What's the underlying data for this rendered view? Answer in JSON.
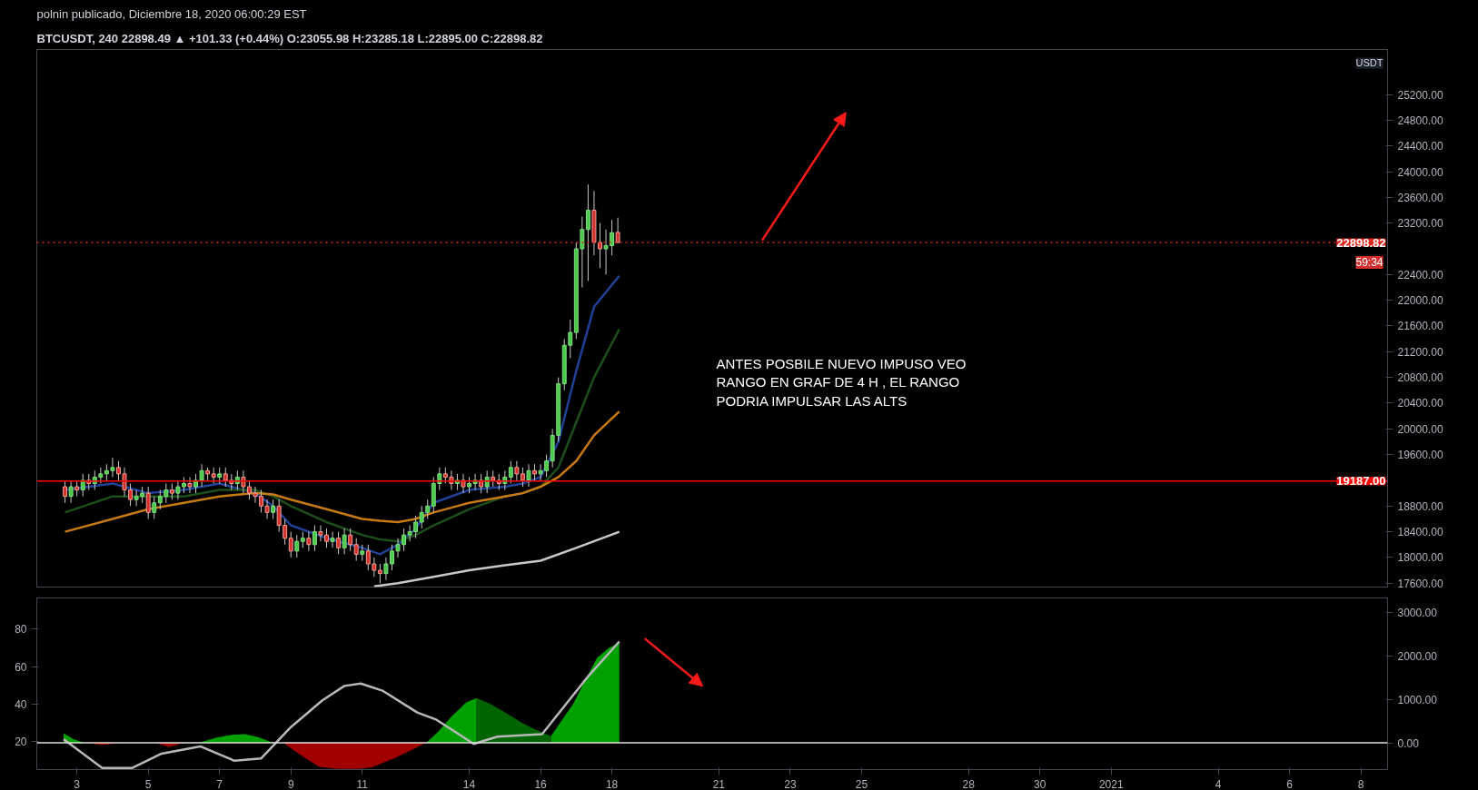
{
  "chart_data": [
    {
      "type": "candlestick",
      "title": "polnin publicado, Diciembre 18, 2020 06:00:29 EST",
      "subtitle": "BTCUSDT, 240  22898.49 ▲ +101.33 (+0.44%) O:23055.98 H:23285.18 L:22895.00 C:22898.82",
      "x": [
        "2020-12-02T16:00",
        "2020-12-02T20:00",
        "2020-12-03T00:00",
        "2020-12-03T04:00",
        "2020-12-03T08:00",
        "2020-12-03T12:00",
        "2020-12-03T16:00",
        "2020-12-03T20:00",
        "2020-12-04T00:00",
        "2020-12-04T04:00",
        "2020-12-04T08:00",
        "2020-12-04T12:00",
        "2020-12-04T16:00",
        "2020-12-04T20:00",
        "2020-12-05T00:00",
        "2020-12-05T04:00",
        "2020-12-05T08:00",
        "2020-12-05T12:00",
        "2020-12-05T16:00",
        "2020-12-05T20:00",
        "2020-12-06T00:00",
        "2020-12-06T04:00",
        "2020-12-06T08:00",
        "2020-12-06T12:00",
        "2020-12-06T16:00",
        "2020-12-06T20:00",
        "2020-12-07T00:00",
        "2020-12-07T04:00",
        "2020-12-07T08:00",
        "2020-12-07T12:00",
        "2020-12-07T16:00",
        "2020-12-07T20:00",
        "2020-12-08T00:00",
        "2020-12-08T04:00",
        "2020-12-08T08:00",
        "2020-12-08T12:00",
        "2020-12-08T16:00",
        "2020-12-08T20:00",
        "2020-12-09T00:00",
        "2020-12-09T04:00",
        "2020-12-09T08:00",
        "2020-12-09T12:00",
        "2020-12-09T16:00",
        "2020-12-09T20:00",
        "2020-12-10T00:00",
        "2020-12-10T04:00",
        "2020-12-10T08:00",
        "2020-12-10T12:00",
        "2020-12-10T16:00",
        "2020-12-10T20:00",
        "2020-12-11T00:00",
        "2020-12-11T04:00",
        "2020-12-11T08:00",
        "2020-12-11T12:00",
        "2020-12-11T16:00",
        "2020-12-11T20:00",
        "2020-12-12T00:00",
        "2020-12-12T04:00",
        "2020-12-12T08:00",
        "2020-12-12T12:00",
        "2020-12-12T16:00",
        "2020-12-12T20:00",
        "2020-12-13T00:00",
        "2020-12-13T04:00",
        "2020-12-13T08:00",
        "2020-12-13T12:00",
        "2020-12-13T16:00",
        "2020-12-13T20:00",
        "2020-12-14T00:00",
        "2020-12-14T04:00",
        "2020-12-14T08:00",
        "2020-12-14T12:00",
        "2020-12-14T16:00",
        "2020-12-14T20:00",
        "2020-12-15T00:00",
        "2020-12-15T04:00",
        "2020-12-15T08:00",
        "2020-12-15T12:00",
        "2020-12-15T16:00",
        "2020-12-15T20:00",
        "2020-12-16T00:00",
        "2020-12-16T04:00",
        "2020-12-16T08:00",
        "2020-12-16T12:00",
        "2020-12-16T16:00",
        "2020-12-16T20:00",
        "2020-12-17T00:00",
        "2020-12-17T04:00",
        "2020-12-17T08:00",
        "2020-12-17T12:00",
        "2020-12-17T16:00",
        "2020-12-17T20:00",
        "2020-12-18T00:00",
        "2020-12-18T04:00"
      ],
      "ohlc": [
        [
          19100,
          19200,
          18850,
          18950
        ],
        [
          18950,
          19200,
          18850,
          19100
        ],
        [
          19100,
          19200,
          18950,
          19050
        ],
        [
          19050,
          19300,
          18950,
          19200
        ],
        [
          19200,
          19300,
          19050,
          19150
        ],
        [
          19150,
          19350,
          19050,
          19250
        ],
        [
          19250,
          19400,
          19150,
          19300
        ],
        [
          19300,
          19450,
          19200,
          19350
        ],
        [
          19350,
          19550,
          19250,
          19400
        ],
        [
          19400,
          19500,
          19200,
          19300
        ],
        [
          19300,
          19400,
          18950,
          19050
        ],
        [
          19050,
          19150,
          18800,
          18900
        ],
        [
          18900,
          19050,
          18800,
          18950
        ],
        [
          18950,
          19100,
          18850,
          19000
        ],
        [
          19000,
          19100,
          18600,
          18700
        ],
        [
          18700,
          18950,
          18600,
          18850
        ],
        [
          18850,
          19050,
          18750,
          18950
        ],
        [
          18950,
          19150,
          18850,
          19050
        ],
        [
          19050,
          19150,
          18900,
          19000
        ],
        [
          19000,
          19200,
          18900,
          19100
        ],
        [
          19100,
          19250,
          19000,
          19150
        ],
        [
          19150,
          19250,
          19000,
          19100
        ],
        [
          19100,
          19300,
          19000,
          19200
        ],
        [
          19200,
          19450,
          19100,
          19350
        ],
        [
          19350,
          19400,
          19200,
          19300
        ],
        [
          19300,
          19400,
          19150,
          19250
        ],
        [
          19250,
          19400,
          19150,
          19300
        ],
        [
          19300,
          19400,
          19100,
          19200
        ],
        [
          19200,
          19300,
          19050,
          19150
        ],
        [
          19150,
          19350,
          19050,
          19250
        ],
        [
          19250,
          19350,
          19000,
          19100
        ],
        [
          19100,
          19200,
          18900,
          19000
        ],
        [
          19000,
          19100,
          18850,
          18950
        ],
        [
          18950,
          19050,
          18700,
          18800
        ],
        [
          18800,
          18900,
          18600,
          18700
        ],
        [
          18700,
          18900,
          18600,
          18800
        ],
        [
          18800,
          18900,
          18400,
          18500
        ],
        [
          18500,
          18600,
          18200,
          18300
        ],
        [
          18300,
          18400,
          18000,
          18100
        ],
        [
          18100,
          18350,
          18000,
          18250
        ],
        [
          18250,
          18400,
          18150,
          18300
        ],
        [
          18300,
          18400,
          18100,
          18200
        ],
        [
          18200,
          18500,
          18100,
          18400
        ],
        [
          18400,
          18500,
          18250,
          18350
        ],
        [
          18350,
          18450,
          18150,
          18250
        ],
        [
          18250,
          18400,
          18150,
          18300
        ],
        [
          18300,
          18400,
          18050,
          18150
        ],
        [
          18150,
          18450,
          18050,
          18350
        ],
        [
          18350,
          18450,
          18100,
          18200
        ],
        [
          18200,
          18300,
          17950,
          18050
        ],
        [
          18050,
          18200,
          17950,
          18100
        ],
        [
          18100,
          18200,
          17800,
          17900
        ],
        [
          17900,
          18000,
          17700,
          17800
        ],
        [
          17800,
          17900,
          17600,
          17750
        ],
        [
          17750,
          18000,
          17650,
          17900
        ],
        [
          17900,
          18200,
          17800,
          18100
        ],
        [
          18100,
          18300,
          18000,
          18200
        ],
        [
          18200,
          18450,
          18100,
          18350
        ],
        [
          18350,
          18500,
          18250,
          18400
        ],
        [
          18400,
          18650,
          18300,
          18550
        ],
        [
          18550,
          18800,
          18450,
          18700
        ],
        [
          18700,
          18900,
          18600,
          18800
        ],
        [
          18800,
          19250,
          18700,
          19150
        ],
        [
          19150,
          19400,
          19050,
          19300
        ],
        [
          19300,
          19400,
          19150,
          19250
        ],
        [
          19250,
          19350,
          19050,
          19150
        ],
        [
          19150,
          19300,
          19050,
          19200
        ],
        [
          19200,
          19300,
          19000,
          19100
        ],
        [
          19100,
          19250,
          19000,
          19150
        ],
        [
          19150,
          19300,
          19050,
          19200
        ],
        [
          19200,
          19300,
          19000,
          19100
        ],
        [
          19100,
          19350,
          19000,
          19250
        ],
        [
          19250,
          19350,
          19100,
          19200
        ],
        [
          19200,
          19300,
          19050,
          19150
        ],
        [
          19150,
          19350,
          19050,
          19250
        ],
        [
          19250,
          19500,
          19150,
          19400
        ],
        [
          19400,
          19500,
          19200,
          19300
        ],
        [
          19300,
          19400,
          19100,
          19200
        ],
        [
          19200,
          19450,
          19100,
          19350
        ],
        [
          19350,
          19450,
          19200,
          19300
        ],
        [
          19300,
          19450,
          19200,
          19350
        ],
        [
          19350,
          19600,
          19250,
          19500
        ],
        [
          19500,
          20000,
          19400,
          19900
        ],
        [
          19900,
          20800,
          19800,
          20700
        ],
        [
          20700,
          21400,
          20600,
          21300
        ],
        [
          21300,
          21700,
          21100,
          21500
        ],
        [
          21500,
          22900,
          21400,
          22800
        ],
        [
          22800,
          23300,
          22200,
          23100
        ],
        [
          23100,
          23800,
          22300,
          23400
        ],
        [
          23400,
          23700,
          22700,
          22900
        ],
        [
          22900,
          23200,
          22500,
          22800
        ],
        [
          22800,
          23100,
          22400,
          22850
        ],
        [
          22850,
          23250,
          22700,
          23050
        ],
        [
          23055.98,
          23285.18,
          22895,
          22898.82
        ]
      ],
      "series": [
        {
          "type": "line",
          "color": "#1f4196",
          "x": [
            "2020-12-02T16:00",
            "2020-12-04T00:00",
            "2020-12-05T00:00",
            "2020-12-06T00:00",
            "2020-12-07T00:00",
            "2020-12-08T00:00",
            "2020-12-08T12:00",
            "2020-12-09T00:00",
            "2020-12-10T00:00",
            "2020-12-11T00:00",
            "2020-12-11T12:00",
            "2020-12-12T00:00",
            "2020-12-12T12:00",
            "2020-12-13T00:00",
            "2020-12-14T00:00",
            "2020-12-15T00:00",
            "2020-12-15T12:00",
            "2020-12-16T00:00",
            "2020-12-16T12:00",
            "2020-12-17T00:00",
            "2020-12-17T12:00",
            "2020-12-18T05:00"
          ],
          "values": [
            19050,
            19150,
            19000,
            19050,
            19150,
            19000,
            18800,
            18500,
            18300,
            18150,
            18050,
            18200,
            18450,
            18850,
            19050,
            19100,
            19150,
            19250,
            19800,
            20900,
            21900,
            22380
          ]
        },
        {
          "type": "line",
          "color": "#1d4f1d",
          "x": [
            "2020-12-02T16:00",
            "2020-12-04T00:00",
            "2020-12-05T00:00",
            "2020-12-06T00:00",
            "2020-12-07T00:00",
            "2020-12-08T00:00",
            "2020-12-08T12:00",
            "2020-12-09T00:00",
            "2020-12-10T00:00",
            "2020-12-11T00:00",
            "2020-12-11T12:00",
            "2020-12-12T00:00",
            "2020-12-12T12:00",
            "2020-12-13T00:00",
            "2020-12-14T00:00",
            "2020-12-15T00:00",
            "2020-12-15T12:00",
            "2020-12-16T00:00",
            "2020-12-16T12:00",
            "2020-12-17T00:00",
            "2020-12-17T12:00",
            "2020-12-18T05:00"
          ],
          "values": [
            18700,
            18950,
            18950,
            18950,
            19050,
            19050,
            18950,
            18800,
            18550,
            18350,
            18280,
            18250,
            18350,
            18500,
            18750,
            18950,
            19000,
            19100,
            19400,
            20100,
            20800,
            21550
          ]
        },
        {
          "type": "line",
          "color": "#c87a12",
          "x": [
            "2020-12-02T16:00",
            "2020-12-04T00:00",
            "2020-12-05T00:00",
            "2020-12-06T00:00",
            "2020-12-07T00:00",
            "2020-12-08T00:00",
            "2020-12-08T12:00",
            "2020-12-09T00:00",
            "2020-12-10T00:00",
            "2020-12-11T00:00",
            "2020-12-11T12:00",
            "2020-12-12T00:00",
            "2020-12-12T12:00",
            "2020-12-13T00:00",
            "2020-12-14T00:00",
            "2020-12-15T00:00",
            "2020-12-15T12:00",
            "2020-12-16T00:00",
            "2020-12-16T12:00",
            "2020-12-17T00:00",
            "2020-12-17T12:00",
            "2020-12-18T05:00"
          ],
          "values": [
            18400,
            18600,
            18750,
            18850,
            18950,
            19000,
            18980,
            18900,
            18750,
            18600,
            18570,
            18550,
            18600,
            18700,
            18850,
            18950,
            19000,
            19100,
            19250,
            19500,
            19900,
            20270
          ]
        },
        {
          "type": "line",
          "color": "#c8c8c8",
          "x": [
            "2020-12-11T08:00",
            "2020-12-12T00:00",
            "2020-12-13T00:00",
            "2020-12-14T00:00",
            "2020-12-15T00:00",
            "2020-12-16T00:00",
            "2020-12-17T00:00",
            "2020-12-18T05:00"
          ],
          "values": [
            17550,
            17600,
            17700,
            17800,
            17880,
            17950,
            18150,
            18400
          ]
        }
      ],
      "ylim": [
        17540,
        25900
      ],
      "yticks": [
        {
          "value": 17600,
          "label": "17600.00"
        },
        {
          "value": 18000,
          "label": "18000.00"
        },
        {
          "value": 18400,
          "label": "18400.00"
        },
        {
          "value": 18800,
          "label": "18800.00"
        },
        {
          "value": 19600,
          "label": "19600.00"
        },
        {
          "value": 20000,
          "label": "20000.00"
        },
        {
          "value": 20400,
          "label": "20400.00"
        },
        {
          "value": 20800,
          "label": "20800.00"
        },
        {
          "value": 21200,
          "label": "21200.00"
        },
        {
          "value": 21600,
          "label": "21600.00"
        },
        {
          "value": 22000,
          "label": "22000.00"
        },
        {
          "value": 22400,
          "label": "22400.00"
        },
        {
          "value": 23200,
          "label": "23200.00"
        },
        {
          "value": 23600,
          "label": "23600.00"
        },
        {
          "value": 24000,
          "label": "24000.00"
        },
        {
          "value": 24400,
          "label": "24400.00"
        },
        {
          "value": 24800,
          "label": "24800.00"
        },
        {
          "value": 25200,
          "label": "25200.00"
        }
      ],
      "xlim": [
        "2020-12-01T21:00",
        "2021-01-08T18:00"
      ],
      "tick_labels": "y",
      "ref_lines": [
        {
          "axis": "y",
          "value": 19187,
          "label": "19187.00",
          "color": "#ff0000",
          "line_style": "solid"
        },
        {
          "axis": "y",
          "value": 22898.82,
          "label": "22898.82",
          "color": "#e0241b",
          "line_style": "dotted"
        }
      ],
      "annotations": [
        "ANTES POSBILE NUEVO IMPUSO VEO\nRANGO EN GRAF DE 4 H , EL RANGO\nPODRIA IMPULSAR LAS ALTS",
        "USDT",
        "59:34"
      ]
    },
    {
      "type": "area",
      "series": [
        {
          "type": "area",
          "axis": "y2",
          "color": "#00a000",
          "x": [
            "2020-12-02T15:00",
            "2020-12-02T22:00",
            "2020-12-03T05:00",
            "2020-12-06T10:00",
            "2020-12-06T22:00",
            "2020-12-07T07:00",
            "2020-12-07T17:00",
            "2020-12-08T02:00",
            "2020-12-08T12:00",
            "2020-12-12T19:00",
            "2020-12-13T03:00",
            "2020-12-13T12:00",
            "2020-12-13T22:00",
            "2020-12-14T05:00"
          ],
          "values": [
            220,
            80,
            0,
            0,
            120,
            180,
            200,
            130,
            0,
            0,
            250,
            600,
            930,
            1030
          ]
        },
        {
          "type": "area",
          "axis": "y2",
          "color": "#006400",
          "x": [
            "2020-12-14T05:00",
            "2020-12-14T14:00",
            "2020-12-15T00:00",
            "2020-12-15T12:00",
            "2020-12-15T19:00",
            "2020-12-16T07:00"
          ],
          "values": [
            1030,
            900,
            700,
            450,
            330,
            150
          ]
        },
        {
          "type": "area",
          "axis": "y2",
          "color": "#00a000",
          "x": [
            "2020-12-16T07:00",
            "2020-12-16T12:00",
            "2020-12-16T22:00",
            "2020-12-17T07:00",
            "2020-12-17T14:00",
            "2020-12-17T22:00",
            "2020-12-18T05:00"
          ],
          "values": [
            150,
            400,
            900,
            1500,
            1950,
            2180,
            2300
          ]
        },
        {
          "type": "area",
          "axis": "y2",
          "color": "#a00000",
          "x": [
            "2020-12-03T07:00",
            "2020-12-03T17:00",
            "2020-12-04T05:00",
            "2020-12-05T05:00",
            "2020-12-05T14:00",
            "2020-12-06T00:00",
            "2020-12-08T19:00",
            "2020-12-09T05:00",
            "2020-12-09T19:00",
            "2020-12-10T07:00",
            "2020-12-10T22:00",
            "2020-12-11T07:00",
            "2020-12-11T22:00",
            "2020-12-12T10:00",
            "2020-12-12T19:00"
          ],
          "values": [
            0,
            -50,
            0,
            0,
            -100,
            0,
            0,
            -250,
            -550,
            -600,
            -600,
            -560,
            -350,
            -150,
            0
          ]
        },
        {
          "type": "line",
          "color": "#b8b8b8",
          "x": [
            "2020-12-02T15:00",
            "2020-12-03T17:00",
            "2020-12-04T13:00",
            "2020-12-05T09:00",
            "2020-12-06T11:00",
            "2020-12-07T10:00",
            "2020-12-08T04:00",
            "2020-12-09T00:00",
            "2020-12-09T21:00",
            "2020-12-10T12:00",
            "2020-12-10T23:00",
            "2020-12-11T14:00",
            "2020-12-12T13:00",
            "2020-12-13T02:00",
            "2020-12-14T03:00",
            "2020-12-14T19:00",
            "2020-12-16T01:00",
            "2020-12-17T08:00",
            "2020-12-18T05:00"
          ],
          "values": [
            21.3,
            5.8,
            5.8,
            13.5,
            17.4,
            9.7,
            11,
            27.7,
            41.9,
            49.7,
            51,
            47,
            35.5,
            31.6,
            18.7,
            22.6,
            23.9,
            54.8,
            73.4
          ]
        }
      ],
      "xlim": [
        "2020-12-01T21:00",
        "2021-01-08T18:00"
      ],
      "xticks": [
        {
          "value": "2020-12-03",
          "label": "3"
        },
        {
          "value": "2020-12-05",
          "label": "5"
        },
        {
          "value": "2020-12-07",
          "label": "7"
        },
        {
          "value": "2020-12-09",
          "label": "9"
        },
        {
          "value": "2020-12-11",
          "label": "11"
        },
        {
          "value": "2020-12-14",
          "label": "14"
        },
        {
          "value": "2020-12-16",
          "label": "16"
        },
        {
          "value": "2020-12-18",
          "label": "18"
        },
        {
          "value": "2020-12-21",
          "label": "21"
        },
        {
          "value": "2020-12-23",
          "label": "23"
        },
        {
          "value": "2020-12-25",
          "label": "25"
        },
        {
          "value": "2020-12-28",
          "label": "28"
        },
        {
          "value": "2020-12-30",
          "label": "30"
        },
        {
          "value": "2021-01-01",
          "label": "2021"
        },
        {
          "value": "2021-01-04",
          "label": "4"
        },
        {
          "value": "2021-01-06",
          "label": "6"
        },
        {
          "value": "2021-01-08",
          "label": "8"
        }
      ],
      "ylim": [
        5,
        96.7
      ],
      "yticks": [
        20,
        40,
        60,
        80
      ],
      "y2lim": [
        -615,
        3330
      ],
      "y2ticks": [
        {
          "value": 0,
          "label": "0.00"
        },
        {
          "value": 1000,
          "label": "1000.00"
        },
        {
          "value": 2000,
          "label": "2000.00"
        },
        {
          "value": 3000,
          "label": "3000.00"
        }
      ],
      "ref_lines": [
        {
          "axis": "y2",
          "value": 0,
          "color": "#e0e0e0",
          "line_style": "solid"
        }
      ]
    }
  ]
}
